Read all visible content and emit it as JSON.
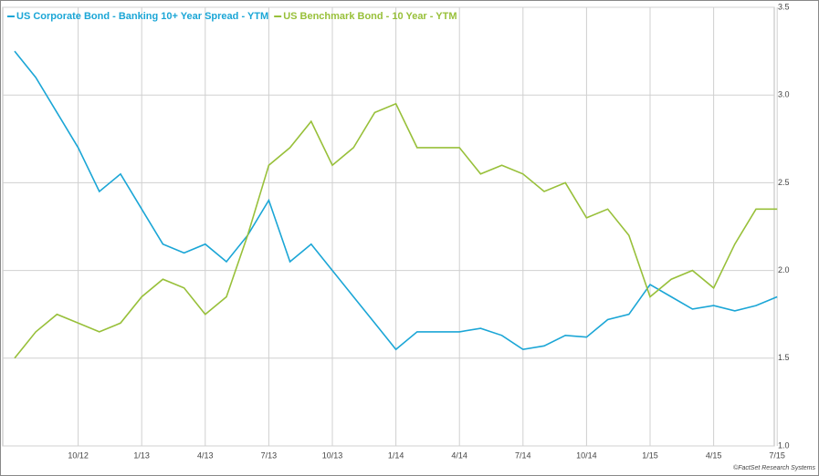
{
  "chart_data": {
    "type": "line",
    "x": [
      "2012-07",
      "2012-08",
      "2012-09",
      "2012-10",
      "2012-11",
      "2012-12",
      "2013-01",
      "2013-02",
      "2013-03",
      "2013-04",
      "2013-05",
      "2013-06",
      "2013-07",
      "2013-08",
      "2013-09",
      "2013-10",
      "2013-11",
      "2013-12",
      "2014-01",
      "2014-02",
      "2014-03",
      "2014-04",
      "2014-05",
      "2014-06",
      "2014-07",
      "2014-08",
      "2014-09",
      "2014-10",
      "2014-11",
      "2014-12",
      "2015-01",
      "2015-02",
      "2015-03",
      "2015-04",
      "2015-05",
      "2015-06",
      "2015-07"
    ],
    "series": [
      {
        "name": "US Corporate Bond - Banking 10+ Year Spread - YTM",
        "color": "#1ba6d6",
        "values": [
          3.25,
          3.1,
          2.9,
          2.7,
          2.45,
          2.55,
          2.35,
          2.15,
          2.1,
          2.15,
          2.05,
          2.2,
          2.4,
          2.05,
          2.15,
          2.0,
          1.85,
          1.7,
          1.55,
          1.65,
          1.65,
          1.65,
          1.67,
          1.63,
          1.55,
          1.57,
          1.63,
          1.62,
          1.72,
          1.75,
          1.92,
          1.85,
          1.78,
          1.8,
          1.77,
          1.8,
          1.85
        ]
      },
      {
        "name": "US Benchmark Bond - 10 Year - YTM",
        "color": "#98c03a",
        "values": [
          1.5,
          1.65,
          1.75,
          1.7,
          1.65,
          1.7,
          1.85,
          1.95,
          1.9,
          1.75,
          1.85,
          2.2,
          2.6,
          2.7,
          2.85,
          2.6,
          2.7,
          2.9,
          2.95,
          2.7,
          2.7,
          2.7,
          2.55,
          2.6,
          2.55,
          2.45,
          2.5,
          2.3,
          2.35,
          2.2,
          1.85,
          1.95,
          2.0,
          1.9,
          2.15,
          2.35,
          2.35
        ]
      }
    ],
    "xticks": [
      {
        "value": "2012-10",
        "label": "10/12"
      },
      {
        "value": "2013-01",
        "label": "1/13"
      },
      {
        "value": "2013-04",
        "label": "4/13"
      },
      {
        "value": "2013-07",
        "label": "7/13"
      },
      {
        "value": "2013-10",
        "label": "10/13"
      },
      {
        "value": "2014-01",
        "label": "1/14"
      },
      {
        "value": "2014-04",
        "label": "4/14"
      },
      {
        "value": "2014-07",
        "label": "7/14"
      },
      {
        "value": "2014-10",
        "label": "10/14"
      },
      {
        "value": "2015-01",
        "label": "1/15"
      },
      {
        "value": "2015-04",
        "label": "4/15"
      },
      {
        "value": "2015-07",
        "label": "7/15"
      }
    ],
    "ylim": [
      1,
      3.5
    ],
    "yticks": [
      {
        "value": 1,
        "label": "1.0"
      },
      1.5,
      {
        "value": 2,
        "label": "2.0"
      },
      2.5,
      {
        "value": 3,
        "label": "3.0"
      },
      3.5
    ],
    "grid": true,
    "credit": "©FactSet Research Systems"
  }
}
